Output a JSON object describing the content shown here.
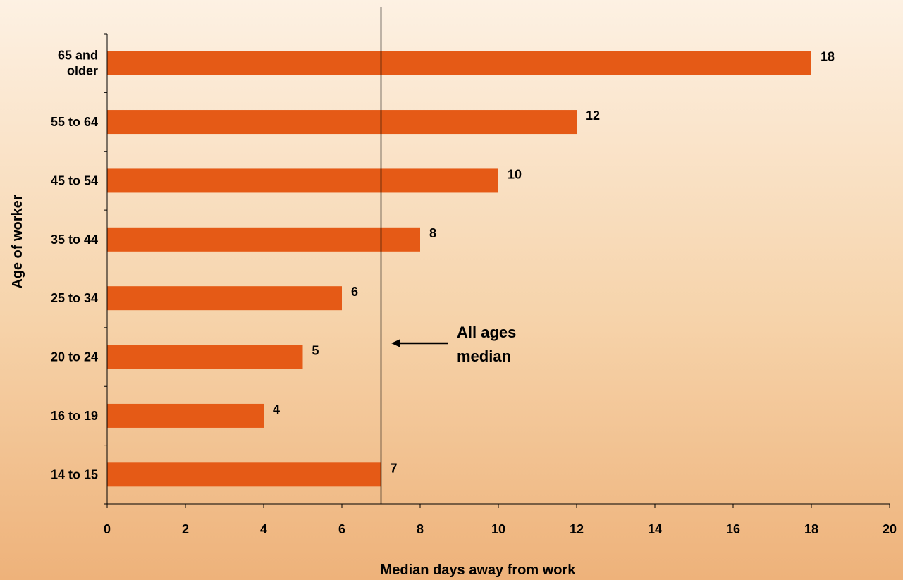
{
  "chart_data": {
    "type": "bar",
    "orientation": "horizontal",
    "categories": [
      "65 and older",
      "55 to 64",
      "45 to 54",
      "35 to 44",
      "25 to 34",
      "20 to 24",
      "16 to 19",
      "14 to 15"
    ],
    "values": [
      18,
      12,
      10,
      8,
      6,
      5,
      4,
      7
    ],
    "xlabel": "Median days away from work",
    "ylabel": "Age of worker",
    "xlim": [
      0,
      20
    ],
    "xticks": [
      0,
      2,
      4,
      6,
      8,
      10,
      12,
      14,
      16,
      18,
      20
    ],
    "reference_line": {
      "value": 7,
      "label": "All ages median"
    },
    "grid": false,
    "bar_color": "#e55a16"
  }
}
